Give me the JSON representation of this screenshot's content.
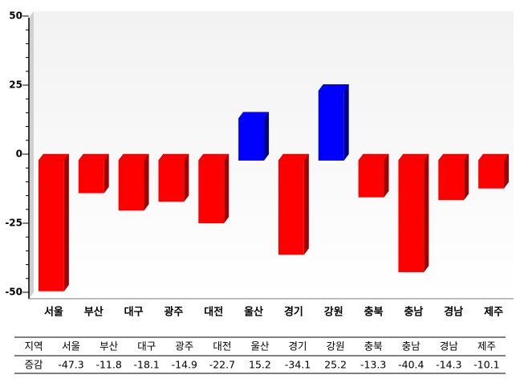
{
  "chart_data": {
    "type": "bar3d",
    "categories": [
      "서울",
      "부산",
      "대구",
      "광주",
      "대전",
      "울산",
      "경기",
      "강원",
      "충북",
      "충남",
      "경남",
      "제주"
    ],
    "values": [
      -47.3,
      -11.8,
      -18.1,
      -14.9,
      -22.7,
      15.2,
      -34.1,
      25.2,
      -13.3,
      -40.4,
      -14.3,
      -10.1
    ],
    "positive_color": "#0000ff",
    "negative_color": "#ff0000",
    "ylim": [
      -50,
      50
    ],
    "yticks": [
      50,
      25,
      0,
      -25,
      -50
    ],
    "table_row_labels": [
      "지역",
      "증감"
    ]
  }
}
